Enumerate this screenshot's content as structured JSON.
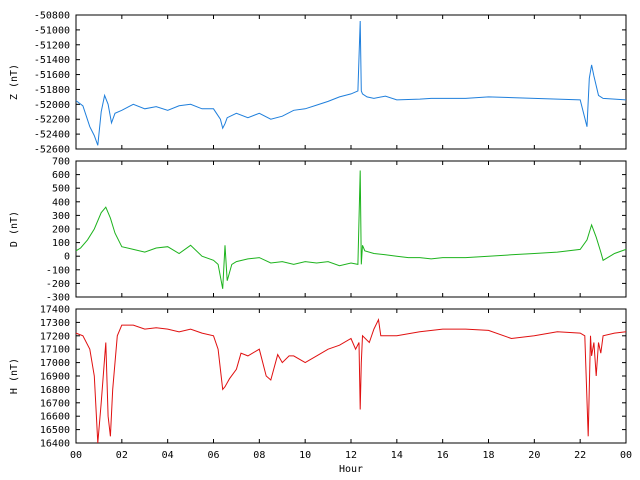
{
  "chart_data": [
    {
      "type": "line",
      "ylabel": "Z (nT)",
      "ylim": [
        -52600,
        -50800
      ],
      "yticks": [
        -50800,
        -51000,
        -51200,
        -51400,
        -51600,
        -51800,
        -52000,
        -52200,
        -52400,
        -52600
      ],
      "color": "#1f7fdc",
      "series": [
        {
          "name": "",
          "x": [
            0,
            0.3,
            0.6,
            0.8,
            0.95,
            1.1,
            1.25,
            1.4,
            1.55,
            1.7,
            2.0,
            2.5,
            3.0,
            3.5,
            4.0,
            4.5,
            5.0,
            5.5,
            6.0,
            6.3,
            6.4,
            6.5,
            6.6,
            7.0,
            7.5,
            8.0,
            8.5,
            9.0,
            9.5,
            10.0,
            10.5,
            11.0,
            11.5,
            12.0,
            12.3,
            12.4,
            12.45,
            12.5,
            12.7,
            13.0,
            13.5,
            14.0,
            15.0,
            15.5,
            16.0,
            17.0,
            18.0,
            19.0,
            20.0,
            21.0,
            22.0,
            22.3,
            22.4,
            22.5,
            22.6,
            22.8,
            23.0,
            23.5,
            24.0
          ],
          "y": [
            -51950,
            -52020,
            -52300,
            -52420,
            -52550,
            -52100,
            -51880,
            -52000,
            -52250,
            -52120,
            -52080,
            -52000,
            -52060,
            -52030,
            -52080,
            -52020,
            -52000,
            -52060,
            -52060,
            -52200,
            -52320,
            -52260,
            -52180,
            -52120,
            -52180,
            -52120,
            -52200,
            -52160,
            -52080,
            -52060,
            -52010,
            -51960,
            -51900,
            -51860,
            -51820,
            -50880,
            -51820,
            -51860,
            -51900,
            -51920,
            -51890,
            -51940,
            -51930,
            -51920,
            -51920,
            -51920,
            -51900,
            -51910,
            -51920,
            -51930,
            -51940,
            -52300,
            -51650,
            -51470,
            -51620,
            -51880,
            -51920,
            -51930,
            -51940
          ]
        }
      ]
    },
    {
      "type": "line",
      "ylabel": "D (nT)",
      "ylim": [
        -300,
        700
      ],
      "yticks": [
        700,
        600,
        500,
        400,
        300,
        200,
        100,
        0,
        -100,
        -200,
        -300
      ],
      "color": "#1db31d",
      "series": [
        {
          "name": "",
          "x": [
            0,
            0.2,
            0.5,
            0.8,
            1.1,
            1.3,
            1.5,
            1.7,
            2.0,
            2.5,
            3.0,
            3.5,
            4.0,
            4.5,
            5.0,
            5.5,
            6.0,
            6.2,
            6.4,
            6.5,
            6.6,
            6.8,
            7.0,
            7.5,
            8.0,
            8.5,
            9.0,
            9.5,
            10.0,
            10.5,
            11.0,
            11.5,
            12.0,
            12.3,
            12.4,
            12.45,
            12.5,
            12.6,
            13.0,
            13.5,
            14.0,
            14.5,
            15.0,
            15.5,
            16.0,
            17.0,
            18.0,
            19.0,
            20.0,
            21.0,
            22.0,
            22.3,
            22.5,
            22.7,
            22.9,
            23.0,
            23.5,
            24.0
          ],
          "y": [
            40,
            60,
            120,
            200,
            320,
            360,
            280,
            170,
            70,
            50,
            30,
            60,
            70,
            20,
            80,
            0,
            -30,
            -60,
            -240,
            80,
            -180,
            -60,
            -40,
            -20,
            -10,
            -50,
            -40,
            -60,
            -40,
            -50,
            -40,
            -70,
            -50,
            -60,
            630,
            -60,
            80,
            40,
            20,
            10,
            0,
            -10,
            -10,
            -20,
            -10,
            -10,
            0,
            10,
            20,
            30,
            50,
            120,
            230,
            140,
            30,
            -30,
            20,
            50
          ]
        }
      ]
    },
    {
      "type": "line",
      "ylabel": "H (nT)",
      "ylim": [
        16400,
        17400
      ],
      "yticks": [
        17400,
        17300,
        17200,
        17100,
        17000,
        16900,
        16800,
        16700,
        16600,
        16500,
        16400
      ],
      "color": "#e01010",
      "xlabel": "Hour",
      "xlim": [
        0,
        24
      ],
      "xticks": [
        "00",
        "02",
        "04",
        "06",
        "08",
        "10",
        "12",
        "14",
        "16",
        "18",
        "20",
        "22",
        "00"
      ],
      "series": [
        {
          "name": "",
          "x": [
            0,
            0.3,
            0.6,
            0.8,
            0.95,
            1.1,
            1.3,
            1.4,
            1.5,
            1.6,
            1.8,
            2.0,
            2.5,
            3.0,
            3.5,
            4.0,
            4.5,
            5.0,
            5.5,
            6.0,
            6.2,
            6.4,
            6.5,
            6.7,
            7.0,
            7.2,
            7.5,
            8.0,
            8.3,
            8.5,
            8.8,
            9.0,
            9.3,
            9.5,
            10.0,
            10.5,
            11.0,
            11.5,
            12.0,
            12.2,
            12.35,
            12.4,
            12.45,
            12.5,
            12.8,
            13.0,
            13.2,
            13.3,
            13.5,
            14.0,
            15.0,
            16.0,
            17.0,
            18.0,
            19.0,
            20.0,
            21.0,
            22.0,
            22.2,
            22.35,
            22.45,
            22.5,
            22.6,
            22.7,
            22.8,
            22.9,
            23.0,
            23.5,
            24.0
          ],
          "y": [
            17220,
            17200,
            17100,
            16900,
            16400,
            16700,
            17150,
            16600,
            16450,
            16800,
            17200,
            17280,
            17280,
            17250,
            17260,
            17250,
            17230,
            17250,
            17220,
            17200,
            17100,
            16800,
            16820,
            16880,
            16950,
            17070,
            17050,
            17100,
            16900,
            16870,
            17060,
            17000,
            17050,
            17050,
            17000,
            17050,
            17100,
            17130,
            17180,
            17100,
            17150,
            16650,
            17000,
            17200,
            17150,
            17250,
            17320,
            17200,
            17200,
            17200,
            17230,
            17250,
            17250,
            17240,
            17180,
            17200,
            17230,
            17220,
            17200,
            16450,
            17200,
            17050,
            17150,
            16900,
            17150,
            17070,
            17200,
            17220,
            17230
          ]
        }
      ]
    }
  ]
}
